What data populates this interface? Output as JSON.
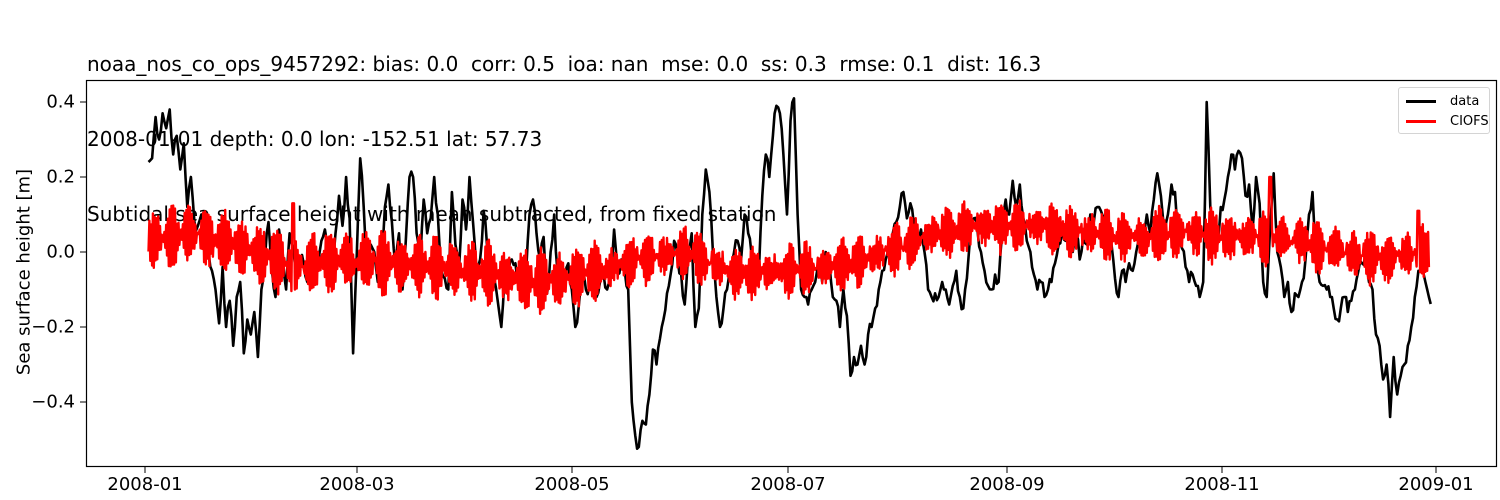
{
  "chart_data": {
    "type": "line",
    "title": "noaa_nos_co_ops_9457292: bias: 0.0  corr: 0.5  ioa: nan  mse: 0.0  ss: 0.3  rmse: 0.1  dist: 16.3",
    "subtitle_lines": [
      "noaa_nos_co_ops_9457292: bias: 0.0  corr: 0.5  ioa: nan  mse: 0.0  ss: 0.3  rmse: 0.1  dist: 16.3",
      "2008-01-01 depth: 0.0 lon: -152.51 lat: 57.73",
      "Subtidal sea surface height with mean subtracted, from fixed station"
    ],
    "xlabel": "",
    "ylabel": "Sea surface height [m]",
    "ylim": [
      -0.573,
      0.459
    ],
    "xlim": [
      "2007-12-30",
      "2009-01-17"
    ],
    "yticks": [
      0.4,
      0.2,
      0.0,
      -0.2,
      -0.4
    ],
    "ytick_labels": [
      "0.4",
      "0.2",
      "0.0",
      "−0.2",
      "−0.4"
    ],
    "xticks": [
      "2008-01",
      "2008-03",
      "2008-05",
      "2008-07",
      "2008-09",
      "2008-11",
      "2009-01"
    ],
    "grid": false,
    "legend_position": "upper right",
    "legend": [
      "data",
      "CIOFS"
    ],
    "series": [
      {
        "name": "data",
        "color": "#000000",
        "day_offset_from_2008_01_01": [
          1,
          2,
          3,
          4,
          5,
          6,
          7,
          8,
          9,
          10,
          11,
          12,
          13,
          14,
          15,
          16,
          17,
          18,
          19,
          20,
          21,
          22,
          23,
          24,
          25,
          26,
          27,
          28,
          29,
          30,
          31,
          32,
          33,
          34,
          35,
          36,
          37,
          38,
          39,
          40,
          41,
          42,
          43,
          44,
          45,
          46,
          47,
          48,
          49,
          50,
          51,
          52,
          53,
          54,
          55,
          56,
          57,
          58,
          59,
          60,
          61,
          62,
          63,
          64,
          65,
          66,
          67,
          68,
          69,
          70,
          71,
          72,
          73,
          74,
          75,
          76,
          77,
          78,
          79,
          80,
          81,
          82,
          83,
          84,
          85,
          86,
          87,
          88,
          89,
          90,
          91,
          92,
          93,
          94,
          95,
          96,
          97,
          98,
          99,
          100,
          101,
          102,
          103,
          104,
          105,
          106,
          107,
          108,
          109,
          110,
          111,
          112,
          113,
          114,
          115,
          116,
          117,
          118,
          119,
          120,
          121,
          122,
          123,
          124,
          125,
          126,
          127,
          128,
          129,
          130,
          131,
          132,
          133,
          134,
          135,
          136,
          137,
          138,
          139,
          140,
          141,
          142,
          143,
          144,
          145,
          146,
          147,
          148,
          149,
          150,
          151,
          152,
          153,
          154,
          155,
          156,
          157,
          158,
          159,
          160,
          161,
          162,
          163,
          164,
          165,
          166,
          167,
          168,
          169,
          170,
          171,
          172,
          173,
          174,
          175,
          176,
          177,
          178,
          179,
          180,
          181,
          182,
          183,
          184,
          185,
          186,
          187,
          188,
          189,
          190,
          191,
          192,
          193,
          194,
          195,
          196,
          197,
          198,
          199,
          200,
          201,
          202,
          203,
          204,
          205,
          206,
          207,
          208,
          209,
          210,
          211,
          212,
          213,
          214,
          215,
          216,
          217,
          218,
          219,
          220,
          221,
          222,
          223,
          224,
          225,
          226,
          227,
          228,
          229,
          230,
          231,
          232,
          233,
          234,
          235,
          236,
          237,
          238,
          239,
          240,
          241,
          242,
          243,
          244,
          245,
          246,
          247,
          248,
          249,
          250,
          251,
          252,
          253,
          254,
          255,
          256,
          257,
          258,
          259,
          260,
          261,
          262,
          263,
          264,
          265,
          266,
          267,
          268,
          269,
          270,
          271,
          272,
          273,
          274,
          275,
          276,
          277,
          278,
          279,
          280,
          281,
          282,
          283,
          284,
          285,
          286,
          287,
          288,
          289,
          290,
          291,
          292,
          293,
          294,
          295,
          296,
          297,
          298,
          299,
          300,
          301,
          302,
          303,
          304,
          305,
          306,
          307,
          308,
          309,
          310,
          311,
          312,
          313,
          314,
          315,
          316,
          317,
          318,
          319,
          320,
          321,
          322,
          323,
          324,
          325,
          326,
          327,
          328,
          329,
          330,
          331,
          332,
          333,
          334,
          335,
          336,
          337,
          338,
          339,
          340,
          341,
          342,
          343,
          344,
          345,
          346,
          347,
          348,
          349,
          350,
          351,
          352,
          353,
          354,
          355,
          356,
          357,
          358,
          359,
          360,
          361,
          362,
          363,
          364
        ],
        "values": [
          0.24,
          0.25,
          0.36,
          0.3,
          0.37,
          0.33,
          0.38,
          0.26,
          0.31,
          0.22,
          0.29,
          0.12,
          0.2,
          0.08,
          0.07,
          0.1,
          0.04,
          0.0,
          -0.05,
          -0.1,
          -0.19,
          -0.04,
          -0.2,
          -0.13,
          -0.25,
          -0.12,
          -0.08,
          -0.27,
          -0.18,
          -0.22,
          -0.16,
          -0.28,
          -0.1,
          -0.02,
          0.08,
          -0.05,
          -0.12,
          0.06,
          0.0,
          -0.1,
          0.05,
          0.01,
          -0.06,
          -0.02,
          -0.03,
          -0.08,
          -0.05,
          0.0,
          -0.04,
          0.03,
          0.06,
          -0.02,
          -0.04,
          0.05,
          0.15,
          0.07,
          0.2,
          0.09,
          -0.27,
          -0.02,
          0.25,
          0.12,
          -0.06,
          0.02,
          0.0,
          -0.08,
          -0.05,
          0.12,
          0.18,
          0.08,
          -0.04,
          0.05,
          -0.1,
          0.04,
          0.2,
          0.2,
          0.05,
          -0.04,
          0.14,
          0.05,
          0.09,
          0.2,
          0.1,
          -0.05,
          -0.07,
          -0.1,
          0.16,
          0.02,
          -0.05,
          0.14,
          0.06,
          0.2,
          0.08,
          -0.05,
          -0.02,
          0.11,
          0.01,
          -0.12,
          -0.07,
          -0.13,
          -0.2,
          -0.05,
          -0.06,
          -0.02,
          -0.03,
          -0.07,
          -0.12,
          -0.06,
          0.1,
          0.14,
          0.05,
          -0.02,
          0.04,
          -0.11,
          0.0,
          0.1,
          -0.06,
          -0.04,
          -0.08,
          -0.03,
          -0.1,
          -0.2,
          -0.14,
          -0.03,
          -0.1,
          -0.09,
          -0.05,
          -0.12,
          -0.08,
          -0.06,
          -0.1,
          -0.04,
          0.06,
          -0.06,
          -0.02,
          -0.05,
          -0.1,
          -0.4,
          -0.49,
          -0.52,
          -0.45,
          -0.46,
          -0.38,
          -0.26,
          -0.3,
          -0.23,
          -0.18,
          -0.11,
          -0.06,
          0.03,
          -0.02,
          -0.06,
          -0.14,
          0.0,
          0.05,
          -0.2,
          -0.15,
          0.1,
          0.22,
          0.16,
          0.0,
          -0.12,
          -0.2,
          -0.15,
          -0.1,
          -0.05,
          0.0,
          0.03,
          -0.02,
          0.1,
          0.05,
          -0.01,
          -0.08,
          -0.06,
          0.15,
          0.26,
          0.2,
          0.31,
          0.39,
          0.37,
          0.26,
          0.1,
          0.35,
          0.41,
          0.1,
          -0.1,
          -0.12,
          -0.14,
          -0.1,
          -0.08,
          -0.02,
          -0.08,
          0.0,
          -0.03,
          -0.12,
          -0.13,
          -0.2,
          -0.1,
          -0.17,
          -0.33,
          -0.28,
          -0.3,
          -0.25,
          -0.3,
          -0.22,
          -0.2,
          -0.15,
          -0.1,
          -0.05,
          -0.02,
          0.0,
          0.05,
          0.08,
          0.12,
          0.16,
          0.09,
          0.13,
          0.07,
          0.03,
          0.06,
          0.0,
          -0.1,
          -0.12,
          -0.11,
          -0.12,
          -0.08,
          -0.1,
          -0.14,
          -0.09,
          -0.05,
          -0.12,
          -0.15,
          -0.07,
          0.05,
          0.09,
          0.06,
          0.0,
          -0.05,
          -0.09,
          -0.1,
          -0.06,
          -0.08,
          0.05,
          0.14,
          0.1,
          0.19,
          0.12,
          0.18,
          0.09,
          0.03,
          0.0,
          -0.06,
          -0.1,
          -0.08,
          -0.12,
          -0.1,
          -0.08,
          -0.03,
          0.02,
          0.06,
          0.03,
          0.08,
          0.0,
          0.05,
          -0.02,
          0.04,
          0.02,
          0.1,
          0.08,
          0.12,
          0.11,
          0.06,
          0.1,
          0.02,
          -0.07,
          -0.12,
          -0.05,
          -0.08,
          -0.03,
          -0.05,
          0.0,
          0.04,
          0.06,
          0.1,
          0.05,
          0.14,
          0.21,
          0.15,
          0.05,
          0.1,
          0.18,
          0.16,
          0.05,
          0.01,
          -0.04,
          -0.08,
          -0.06,
          -0.09,
          -0.12,
          -0.08,
          0.4,
          0.12,
          0.07,
          0.02,
          0.12,
          0.14,
          0.2,
          0.26,
          0.22,
          0.27,
          0.25,
          0.15,
          0.18,
          0.06,
          0.2,
          0.13,
          -0.08,
          -0.12,
          0.07,
          0.21,
          0.0,
          -0.04,
          -0.12,
          -0.08,
          -0.16,
          -0.11,
          -0.12,
          -0.08,
          -0.02,
          0.1,
          0.16,
          0.0,
          -0.08,
          -0.09,
          -0.1,
          -0.12,
          -0.15,
          -0.18,
          -0.15,
          -0.12,
          -0.16,
          -0.13,
          -0.1,
          -0.05,
          -0.03,
          0.0,
          -0.08,
          -0.1,
          -0.22,
          -0.25,
          -0.34,
          -0.3,
          -0.44,
          -0.28,
          -0.38,
          -0.33,
          -0.3,
          -0.25,
          -0.2,
          -0.12,
          -0.05,
          -0.02,
          -0.08,
          -0.12,
          -0.16,
          -0.08,
          -0.1,
          -0.02,
          0.07,
          0.04,
          0.1,
          0.06,
          0.0,
          -0.13
        ]
      },
      {
        "name": "CIOFS",
        "color": "#ff0000",
        "note": "tidal-residual model with high-frequency oscillation; amplitude ~0.05-0.10 m around a slowly varying mean",
        "day_offset_from_2008_01_01": [
          1,
          14,
          28,
          42,
          56,
          70,
          84,
          98,
          112,
          126,
          140,
          154,
          168,
          182,
          196,
          210,
          224,
          238,
          252,
          266,
          280,
          294,
          308,
          322,
          336,
          350,
          364
        ],
        "mean_values": [
          0.03,
          0.05,
          0.01,
          -0.04,
          -0.02,
          -0.03,
          -0.04,
          -0.06,
          -0.08,
          -0.06,
          -0.02,
          0.0,
          -0.06,
          -0.05,
          -0.04,
          0.0,
          0.05,
          0.07,
          0.07,
          0.05,
          0.04,
          0.05,
          0.04,
          0.04,
          0.01,
          -0.02,
          0.0
        ],
        "peaks": [
          {
            "date": "2008-02-12",
            "value": 0.13
          },
          {
            "date": "2008-11-15",
            "value": 0.2
          },
          {
            "date": "2008-12-27",
            "value": 0.11
          }
        ]
      }
    ]
  },
  "title_lines": [
    "noaa_nos_co_ops_9457292: bias: 0.0  corr: 0.5  ioa: nan  mse: 0.0  ss: 0.3  rmse: 0.1  dist: 16.3",
    "2008-01-01 depth: 0.0 lon: -152.51 lat: 57.73",
    "Subtidal sea surface height with mean subtracted, from fixed station"
  ],
  "axes": {
    "ylabel": "Sea surface height [m]",
    "yticks": [
      "0.4",
      "0.2",
      "0.0",
      "−0.2",
      "−0.4"
    ],
    "xticks": [
      "2008-01",
      "2008-03",
      "2008-05",
      "2008-07",
      "2008-09",
      "2008-11",
      "2009-01"
    ]
  },
  "legend": {
    "items": [
      {
        "label": "data",
        "color": "#000000"
      },
      {
        "label": "CIOFS",
        "color": "#ff0000"
      }
    ]
  }
}
